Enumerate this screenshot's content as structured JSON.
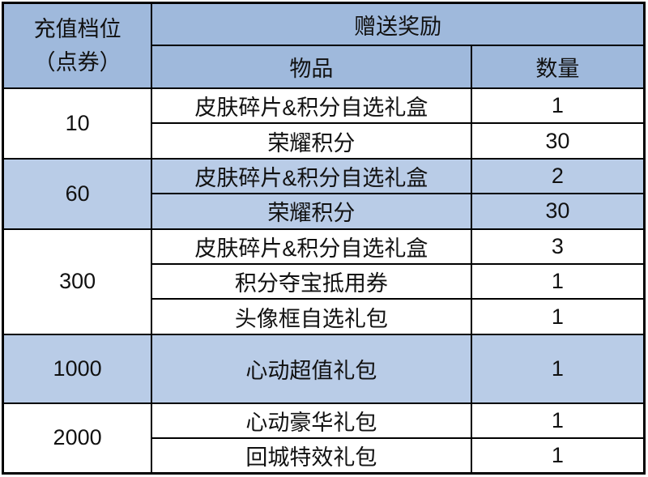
{
  "table": {
    "header": {
      "tier_label_line1": "充值档位",
      "tier_label_line2": "（点券）",
      "rewards_label": "赠送奖励",
      "item_label": "物品",
      "quantity_label": "数量"
    },
    "tiers": [
      {
        "tier": "10",
        "highlight": false,
        "tall": false,
        "rewards": [
          {
            "item": "皮肤碎片&积分自选礼盒",
            "qty": "1"
          },
          {
            "item": "荣耀积分",
            "qty": "30"
          }
        ]
      },
      {
        "tier": "60",
        "highlight": true,
        "tall": false,
        "rewards": [
          {
            "item": "皮肤碎片&积分自选礼盒",
            "qty": "2"
          },
          {
            "item": "荣耀积分",
            "qty": "30"
          }
        ]
      },
      {
        "tier": "300",
        "highlight": false,
        "tall": false,
        "rewards": [
          {
            "item": "皮肤碎片&积分自选礼盒",
            "qty": "3"
          },
          {
            "item": "积分夺宝抵用券",
            "qty": "1"
          },
          {
            "item": "头像框自选礼包",
            "qty": "1"
          }
        ]
      },
      {
        "tier": "1000",
        "highlight": true,
        "tall": true,
        "rewards": [
          {
            "item": "心动超值礼包",
            "qty": "1"
          }
        ]
      },
      {
        "tier": "2000",
        "highlight": false,
        "tall": false,
        "rewards": [
          {
            "item": "心动豪华礼包",
            "qty": "1"
          },
          {
            "item": "回城特效礼包",
            "qty": "1"
          }
        ]
      }
    ],
    "colors": {
      "header_bg": "#9FB9DC",
      "highlight_bg": "#B9CCE7",
      "border": "#000000"
    }
  },
  "chart_data": {
    "type": "table",
    "title": "",
    "columns": [
      "充值档位（点券）",
      "物品",
      "数量"
    ],
    "rows": [
      [
        "10",
        "皮肤碎片&积分自选礼盒",
        1
      ],
      [
        "10",
        "荣耀积分",
        30
      ],
      [
        "60",
        "皮肤碎片&积分自选礼盒",
        2
      ],
      [
        "60",
        "荣耀积分",
        30
      ],
      [
        "300",
        "皮肤碎片&积分自选礼盒",
        3
      ],
      [
        "300",
        "积分夺宝抵用券",
        1
      ],
      [
        "300",
        "头像框自选礼包",
        1
      ],
      [
        "1000",
        "心动超值礼包",
        1
      ],
      [
        "2000",
        "心动豪华礼包",
        1
      ],
      [
        "2000",
        "回城特效礼包",
        1
      ]
    ],
    "header_group_label": "赠送奖励",
    "highlighted_tiers": [
      "60",
      "1000"
    ]
  }
}
